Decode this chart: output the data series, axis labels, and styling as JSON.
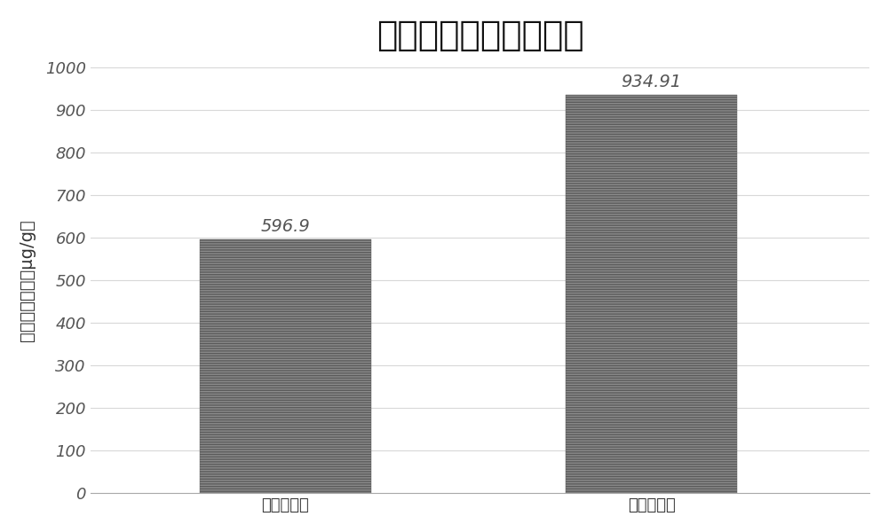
{
  "title": "单位菌泥表达量对比图",
  "categories": [
    "批次式发酵",
    "高密度发酵"
  ],
  "values": [
    596.9,
    934.91
  ],
  "bar_color": "#8c8c8c",
  "hatch": "------",
  "ylabel": "目的蛋白含量（μg/g）",
  "ylim": [
    0,
    1000
  ],
  "yticks": [
    0,
    100,
    200,
    300,
    400,
    500,
    600,
    700,
    800,
    900,
    1000
  ],
  "title_fontsize": 28,
  "axis_label_fontsize": 14,
  "tick_label_fontsize": 13,
  "annotation_fontsize": 14,
  "bar_width": 0.22,
  "background_color": "#ffffff",
  "spine_color": "#aaaaaa",
  "grid_color": "#d8d8d8",
  "annotation_color": "#555555",
  "x_positions": [
    0.25,
    0.72
  ]
}
